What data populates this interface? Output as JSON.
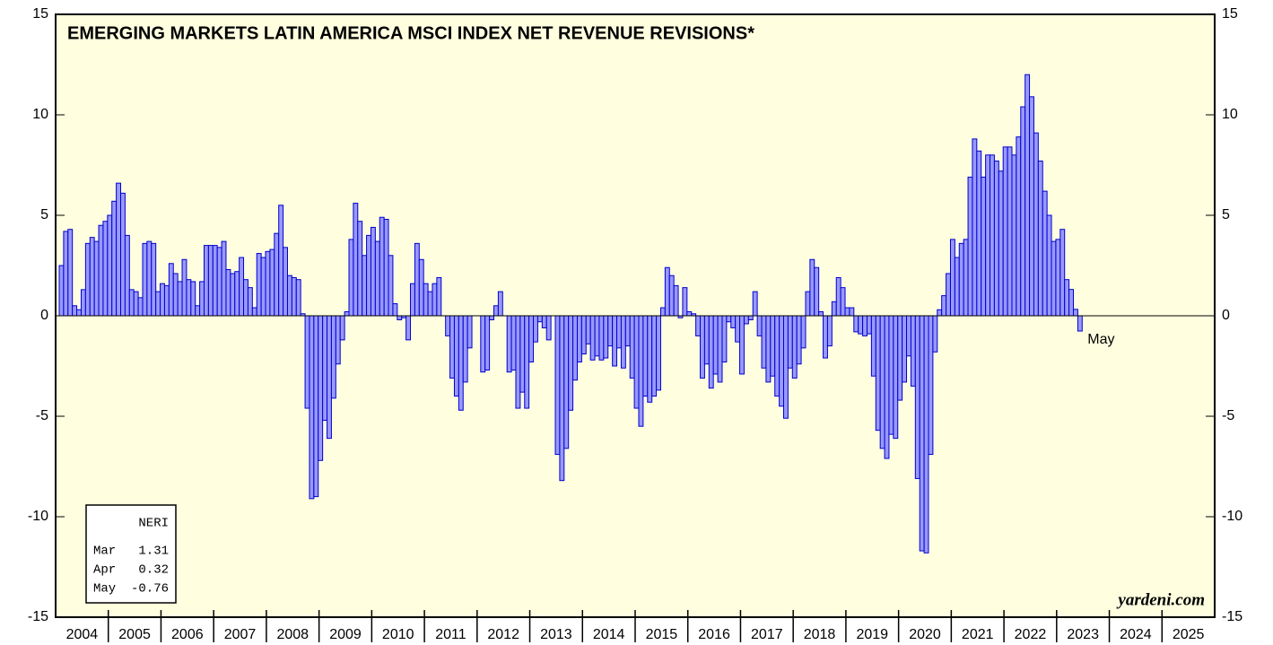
{
  "chart_data": {
    "type": "bar",
    "title": "EMERGING MARKETS LATIN AMERICA MSCI INDEX NET REVENUE REVISIONS*",
    "categories": [
      "2004",
      "2005",
      "2006",
      "2007",
      "2008",
      "2009",
      "2010",
      "2011",
      "2012",
      "2013",
      "2014",
      "2015",
      "2016",
      "2017",
      "2018",
      "2019",
      "2020",
      "2021",
      "2022",
      "2023",
      "2024",
      "2025"
    ],
    "x": [
      "2004-01",
      "2004-02",
      "2004-03",
      "2004-04",
      "2004-05",
      "2004-06",
      "2004-07",
      "2004-08",
      "2004-09",
      "2004-10",
      "2004-11",
      "2004-12",
      "2005-01",
      "2005-02",
      "2005-03",
      "2005-04",
      "2005-05",
      "2005-06",
      "2005-07",
      "2005-08",
      "2005-09",
      "2005-10",
      "2005-11",
      "2005-12",
      "2006-01",
      "2006-02",
      "2006-03",
      "2006-04",
      "2006-05",
      "2006-06",
      "2006-07",
      "2006-08",
      "2006-09",
      "2006-10",
      "2006-11",
      "2006-12",
      "2007-01",
      "2007-02",
      "2007-03",
      "2007-04",
      "2007-05",
      "2007-06",
      "2007-07",
      "2007-08",
      "2007-09",
      "2007-10",
      "2007-11",
      "2007-12",
      "2008-01",
      "2008-02",
      "2008-03",
      "2008-04",
      "2008-05",
      "2008-06",
      "2008-07",
      "2008-08",
      "2008-09",
      "2008-10",
      "2008-11",
      "2008-12",
      "2009-01",
      "2009-02",
      "2009-03",
      "2009-04",
      "2009-05",
      "2009-06",
      "2009-07",
      "2009-08",
      "2009-09",
      "2009-10",
      "2009-11",
      "2009-12",
      "2010-01",
      "2010-02",
      "2010-03",
      "2010-04",
      "2010-05",
      "2010-06",
      "2010-07",
      "2010-08",
      "2010-09",
      "2010-10",
      "2010-11",
      "2010-12",
      "2011-01",
      "2011-02",
      "2011-03",
      "2011-04",
      "2011-05",
      "2011-06",
      "2011-07",
      "2011-08",
      "2011-09",
      "2011-10",
      "2011-11",
      "2011-12",
      "2012-01",
      "2012-02",
      "2012-03",
      "2012-04",
      "2012-05",
      "2012-06",
      "2012-07",
      "2012-08",
      "2012-09",
      "2012-10",
      "2012-11",
      "2012-12",
      "2013-01",
      "2013-02",
      "2013-03",
      "2013-04",
      "2013-05",
      "2013-06",
      "2013-07",
      "2013-08",
      "2013-09",
      "2013-10",
      "2013-11",
      "2013-12",
      "2014-01",
      "2014-02",
      "2014-03",
      "2014-04",
      "2014-05",
      "2014-06",
      "2014-07",
      "2014-08",
      "2014-09",
      "2014-10",
      "2014-11",
      "2014-12",
      "2015-01",
      "2015-02",
      "2015-03",
      "2015-04",
      "2015-05",
      "2015-06",
      "2015-07",
      "2015-08",
      "2015-09",
      "2015-10",
      "2015-11",
      "2015-12",
      "2016-01",
      "2016-02",
      "2016-03",
      "2016-04",
      "2016-05",
      "2016-06",
      "2016-07",
      "2016-08",
      "2016-09",
      "2016-10",
      "2016-11",
      "2016-12",
      "2017-01",
      "2017-02",
      "2017-03",
      "2017-04",
      "2017-05",
      "2017-06",
      "2017-07",
      "2017-08",
      "2017-09",
      "2017-10",
      "2017-11",
      "2017-12",
      "2018-01",
      "2018-02",
      "2018-03",
      "2018-04",
      "2018-05",
      "2018-06",
      "2018-07",
      "2018-08",
      "2018-09",
      "2018-10",
      "2018-11",
      "2018-12",
      "2019-01",
      "2019-02",
      "2019-03",
      "2019-04",
      "2019-05",
      "2019-06",
      "2019-07",
      "2019-08",
      "2019-09",
      "2019-10",
      "2019-11",
      "2019-12",
      "2020-01",
      "2020-02",
      "2020-03",
      "2020-04",
      "2020-05",
      "2020-06",
      "2020-07",
      "2020-08",
      "2020-09",
      "2020-10",
      "2020-11",
      "2020-12",
      "2021-01",
      "2021-02",
      "2021-03",
      "2021-04",
      "2021-05",
      "2021-06",
      "2021-07",
      "2021-08",
      "2021-09",
      "2021-10",
      "2021-11",
      "2021-12",
      "2022-01",
      "2022-02",
      "2022-03",
      "2022-04",
      "2022-05",
      "2022-06",
      "2022-07",
      "2022-08",
      "2022-09",
      "2022-10",
      "2022-11",
      "2022-12",
      "2023-01",
      "2023-02",
      "2023-03",
      "2023-04",
      "2023-05"
    ],
    "series": [
      {
        "name": "NERI",
        "color": "#9999ff",
        "stroke": "#0000cc",
        "values": [
          2.5,
          4.2,
          4.3,
          0.5,
          0.3,
          1.3,
          3.6,
          3.9,
          3.7,
          4.5,
          4.7,
          5.0,
          5.7,
          6.6,
          6.1,
          4.0,
          1.3,
          1.2,
          0.9,
          3.6,
          3.7,
          3.6,
          1.2,
          1.6,
          1.5,
          2.6,
          2.1,
          1.7,
          2.8,
          1.8,
          1.7,
          0.5,
          1.7,
          3.5,
          3.5,
          3.5,
          3.4,
          3.7,
          2.3,
          2.1,
          2.2,
          2.9,
          1.8,
          1.4,
          0.4,
          3.1,
          2.9,
          3.2,
          3.3,
          4.1,
          5.5,
          3.4,
          2.0,
          1.9,
          1.8,
          0.1,
          -4.6,
          -9.1,
          -9.0,
          -7.2,
          -5.2,
          -6.1,
          -4.1,
          -2.4,
          -1.2,
          0.2,
          3.8,
          5.6,
          4.7,
          3.0,
          4.0,
          4.4,
          3.7,
          4.9,
          4.8,
          3.0,
          0.6,
          -0.2,
          -0.1,
          -1.2,
          1.6,
          3.6,
          2.8,
          1.6,
          1.2,
          1.6,
          1.9,
          0.0,
          -1.0,
          -3.1,
          -4.0,
          -4.7,
          -3.3,
          -1.6,
          0,
          0,
          -2.8,
          -2.7,
          -0.2,
          0.5,
          1.2,
          0,
          -2.8,
          -2.7,
          -4.6,
          -3.8,
          -4.6,
          -2.3,
          -1.3,
          -0.3,
          -0.6,
          -1.2,
          0,
          -6.9,
          -8.2,
          -6.6,
          -4.7,
          -3.2,
          -2.3,
          -1.9,
          -1.4,
          -2.2,
          -2.0,
          -2.2,
          -2.1,
          -1.5,
          -2.5,
          -1.6,
          -2.6,
          -1.5,
          -3.1,
          -4.6,
          -5.5,
          -4.0,
          -4.3,
          -4.0,
          -3.7,
          0.4,
          2.4,
          2.0,
          1.5,
          -0.1,
          1.4,
          0.2,
          0.1,
          -1.0,
          -3.1,
          -2.4,
          -3.6,
          -2.9,
          -3.3,
          -2.3,
          -0.3,
          -0.6,
          -1.3,
          -2.9,
          -0.4,
          -0.2,
          1.2,
          -1.0,
          -2.6,
          -3.3,
          -3.0,
          -4.0,
          -4.5,
          -5.1,
          -2.6,
          -3.1,
          -2.4,
          -1.6,
          1.2,
          2.8,
          2.4,
          0.2,
          -2.1,
          -1.5,
          0.7,
          1.9,
          1.4,
          0.4,
          0.4,
          -0.8,
          -0.9,
          -1.0,
          -0.9,
          -3.0,
          -5.7,
          -6.6,
          -7.1,
          -5.9,
          -6.1,
          -4.2,
          -3.3,
          -2.0,
          -3.5,
          -8.1,
          -11.7,
          -11.8,
          -6.9,
          -1.8,
          0.3,
          1.0,
          2.1,
          3.8,
          2.9,
          3.6,
          3.8,
          6.9,
          8.8,
          8.2,
          6.9,
          8.0,
          8.0,
          7.7,
          7.2,
          8.4,
          8.4,
          8.0,
          8.9,
          10.4,
          12.0,
          10.9,
          9.1,
          7.7,
          6.2,
          5.0,
          3.7,
          3.8,
          4.3,
          1.8,
          1.31,
          0.32,
          -0.76
        ]
      }
    ],
    "ylim": [
      -15,
      15
    ],
    "yticks": [
      -15,
      -10,
      -5,
      0,
      5,
      10,
      15
    ],
    "annotation": "May",
    "legend_box": {
      "title": "NERI",
      "rows": [
        [
          "Mar",
          "1.31"
        ],
        [
          "Apr",
          "0.32"
        ],
        [
          "May",
          "-0.76"
        ]
      ]
    },
    "source": "yardeni.com"
  }
}
